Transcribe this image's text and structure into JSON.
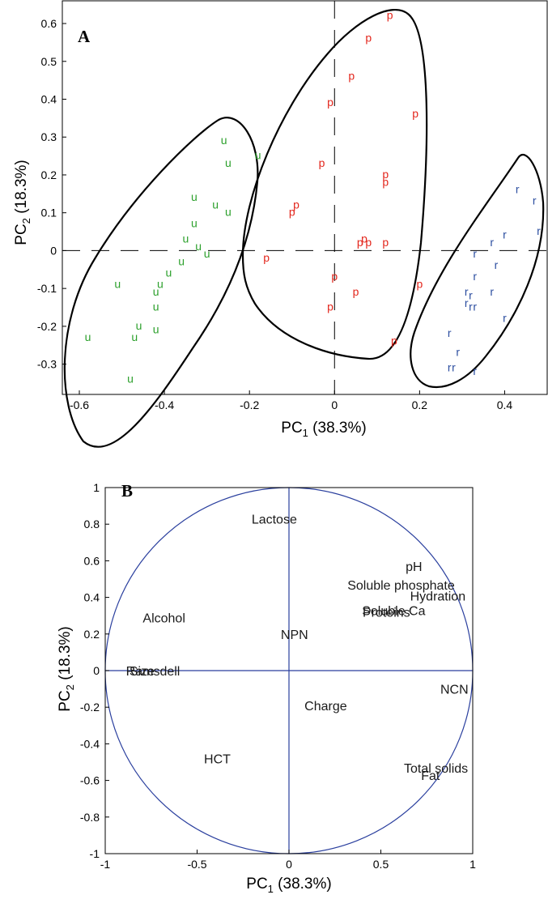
{
  "colors": {
    "u": "#2ca02c",
    "p": "#e3261c",
    "r": "#2c4ea0",
    "circle": "#2a3f9e",
    "axes": "#000000"
  },
  "chart_data": [
    {
      "type": "scatter",
      "panel_label": "A",
      "xlabel_main": "PC",
      "xlabel_sub": "1",
      "xlabel_tail": " (38.3%)",
      "ylabel_main": "PC",
      "ylabel_sub": "2",
      "ylabel_tail": " (18.3%)",
      "xlim": [
        -0.64,
        0.5
      ],
      "ylim": [
        -0.38,
        0.66
      ],
      "xticks": [
        -0.6,
        -0.4,
        -0.2,
        0,
        0.2,
        0.4
      ],
      "xtick_labels": [
        "-0.6",
        "-0.4",
        "-0.2",
        "0",
        "0.2",
        "0.4"
      ],
      "yticks": [
        -0.3,
        -0.2,
        -0.1,
        0,
        0.1,
        0.2,
        0.3,
        0.4,
        0.5,
        0.6
      ],
      "ytick_labels": [
        "-0.3",
        "-0.2",
        "-0.1",
        "0",
        "0.1",
        "0.2",
        "0.3",
        "0.4",
        "0.5",
        "0.6"
      ],
      "series": [
        {
          "marker": "u",
          "color_key": "u",
          "points": [
            [
              -0.26,
              0.29
            ],
            [
              -0.25,
              0.23
            ],
            [
              -0.18,
              0.25
            ],
            [
              -0.33,
              0.14
            ],
            [
              -0.28,
              0.12
            ],
            [
              -0.25,
              0.1
            ],
            [
              -0.33,
              0.07
            ],
            [
              -0.35,
              0.03
            ],
            [
              -0.32,
              0.01
            ],
            [
              -0.3,
              -0.01
            ],
            [
              -0.36,
              -0.03
            ],
            [
              -0.39,
              -0.06
            ],
            [
              -0.41,
              -0.09
            ],
            [
              -0.42,
              -0.11
            ],
            [
              -0.51,
              -0.09
            ],
            [
              -0.42,
              -0.15
            ],
            [
              -0.46,
              -0.2
            ],
            [
              -0.42,
              -0.21
            ],
            [
              -0.47,
              -0.23
            ],
            [
              -0.58,
              -0.23
            ],
            [
              -0.48,
              -0.34
            ]
          ]
        },
        {
          "marker": "p",
          "color_key": "p",
          "points": [
            [
              0.13,
              0.62
            ],
            [
              0.08,
              0.56
            ],
            [
              0.04,
              0.46
            ],
            [
              -0.01,
              0.39
            ],
            [
              0.19,
              0.36
            ],
            [
              -0.03,
              0.23
            ],
            [
              0.12,
              0.2
            ],
            [
              0.12,
              0.18
            ],
            [
              -0.09,
              0.12
            ],
            [
              -0.1,
              0.1
            ],
            [
              0.07,
              0.03
            ],
            [
              0.06,
              0.02
            ],
            [
              0.08,
              0.02
            ],
            [
              0.12,
              0.02
            ],
            [
              -0.16,
              -0.02
            ],
            [
              0,
              -0.07
            ],
            [
              0.2,
              -0.09
            ],
            [
              0.05,
              -0.11
            ],
            [
              -0.01,
              -0.15
            ],
            [
              0.14,
              -0.24
            ]
          ]
        },
        {
          "marker": "r",
          "color_key": "r",
          "points": [
            [
              0.43,
              0.16
            ],
            [
              0.47,
              0.13
            ],
            [
              0.48,
              0.05
            ],
            [
              0.4,
              0.04
            ],
            [
              0.37,
              0.02
            ],
            [
              0.33,
              -0.01
            ],
            [
              0.38,
              -0.04
            ],
            [
              0.33,
              -0.07
            ],
            [
              0.31,
              -0.11
            ],
            [
              0.32,
              -0.12
            ],
            [
              0.37,
              -0.11
            ],
            [
              0.31,
              -0.14
            ],
            [
              0.32,
              -0.15
            ],
            [
              0.33,
              -0.15
            ],
            [
              0.4,
              -0.18
            ],
            [
              0.27,
              -0.22
            ],
            [
              0.29,
              -0.27
            ],
            [
              0.27,
              -0.31
            ],
            [
              0.28,
              -0.31
            ],
            [
              0.33,
              -0.32
            ]
          ]
        }
      ],
      "reference_lines": [
        "x = 0",
        "y = 0"
      ],
      "grid": false
    },
    {
      "type": "scatter",
      "panel_label": "B",
      "xlabel_main": "PC",
      "xlabel_sub": "1",
      "xlabel_tail": " (38.3%)",
      "ylabel_main": "PC",
      "ylabel_sub": "2",
      "ylabel_tail": " (18.3%)",
      "xlim": [
        -1,
        1
      ],
      "ylim": [
        -1,
        1
      ],
      "xticks": [
        -1,
        -0.5,
        0,
        0.5,
        1
      ],
      "xtick_labels": [
        "-1",
        "-0.5",
        "0",
        "0.5",
        "1"
      ],
      "yticks": [
        -1,
        -0.8,
        -0.6,
        -0.4,
        -0.2,
        0,
        0.2,
        0.4,
        0.6,
        0.8,
        1
      ],
      "ytick_labels": [
        "-1",
        "-0.8",
        "-0.6",
        "-0.4",
        "-0.2",
        "0",
        "0.2",
        "0.4",
        "0.6",
        "0.8",
        "1"
      ],
      "unit_circle": true,
      "grid": false,
      "variables": [
        {
          "name": "Lactose",
          "x": -0.08,
          "y": 0.83
        },
        {
          "name": "pH",
          "x": 0.68,
          "y": 0.57
        },
        {
          "name": "Soluble phosphate",
          "x": 0.61,
          "y": 0.47
        },
        {
          "name": "Hydration",
          "x": 0.81,
          "y": 0.41
        },
        {
          "name": "Soluble Ca",
          "x": 0.57,
          "y": 0.33
        },
        {
          "name": "Proteins",
          "x": 0.53,
          "y": 0.32
        },
        {
          "name": "Alcohol",
          "x": -0.68,
          "y": 0.29
        },
        {
          "name": "NPN",
          "x": 0.03,
          "y": 0.2
        },
        {
          "name": "Ramsdell",
          "x": -0.74,
          "y": 0
        },
        {
          "name": "Size",
          "x": -0.8,
          "y": 0
        },
        {
          "name": "NCN",
          "x": 0.9,
          "y": -0.1
        },
        {
          "name": "Charge",
          "x": 0.2,
          "y": -0.19
        },
        {
          "name": "HCT",
          "x": -0.39,
          "y": -0.48
        },
        {
          "name": "Total solids",
          "x": 0.8,
          "y": -0.53
        },
        {
          "name": "Fat",
          "x": 0.77,
          "y": -0.57
        }
      ]
    }
  ]
}
